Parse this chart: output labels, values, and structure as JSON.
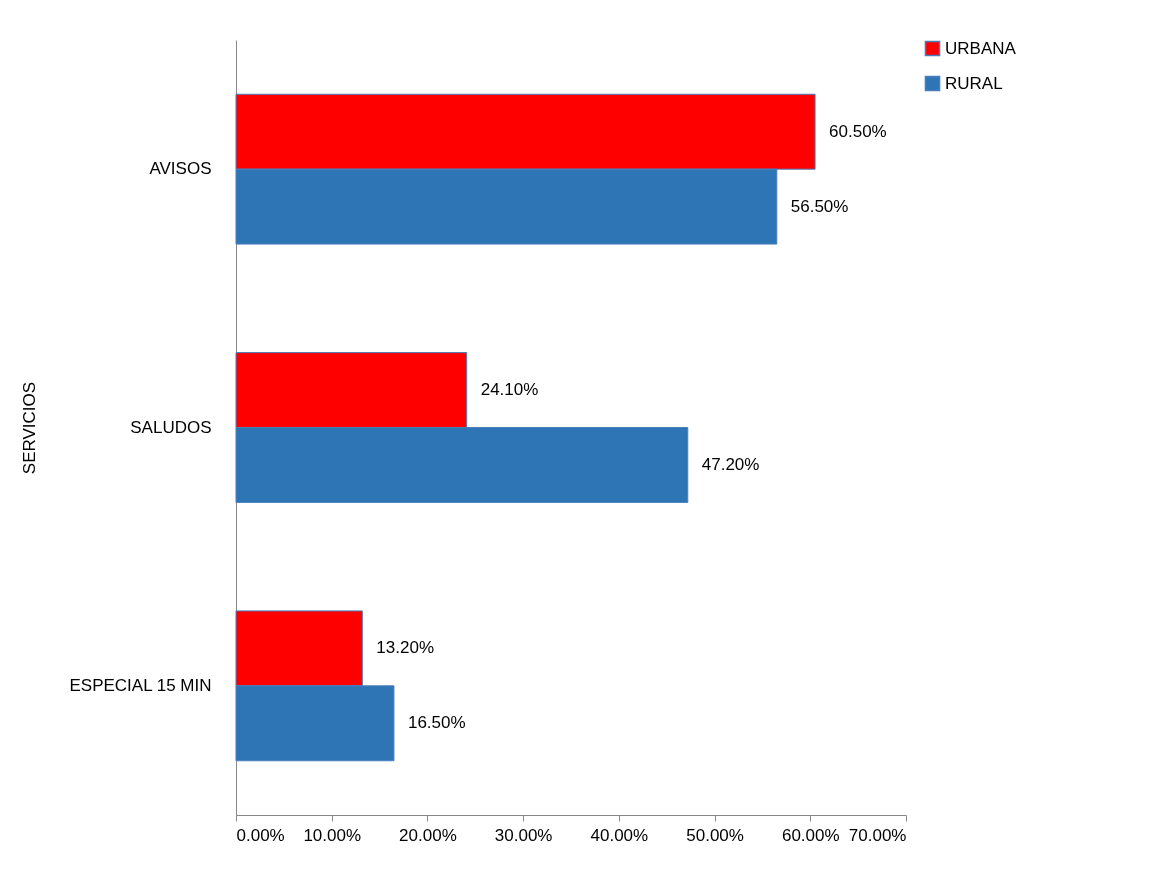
{
  "chart_data": {
    "type": "bar",
    "orientation": "horizontal",
    "ylabel": "SERVICIOS",
    "categories": [
      "AVISOS",
      "SALUDOS",
      "ESPECIAL 15 MIN"
    ],
    "series": [
      {
        "name": "URBANA",
        "color": "#ff0000",
        "values": [
          60.5,
          24.1,
          13.2
        ],
        "value_labels": [
          "60.50%",
          "24.10%",
          "13.20%"
        ]
      },
      {
        "name": "RURAL",
        "color": "#2e75b6",
        "values": [
          56.5,
          47.2,
          16.5
        ],
        "value_labels": [
          "56.50%",
          "47.20%",
          "16.50%"
        ]
      }
    ],
    "xlim": [
      0,
      70
    ],
    "xticks": [
      {
        "value": 0,
        "label": "0.00%"
      },
      {
        "value": 10,
        "label": "10.00%"
      },
      {
        "value": 20,
        "label": "20.00%"
      },
      {
        "value": 30,
        "label": "30.00%"
      },
      {
        "value": 40,
        "label": "40.00%"
      },
      {
        "value": 50,
        "label": "50.00%"
      },
      {
        "value": 60,
        "label": "60.00%"
      },
      {
        "value": 70,
        "label": "70.00%"
      }
    ],
    "grid": false,
    "legend": "right"
  }
}
